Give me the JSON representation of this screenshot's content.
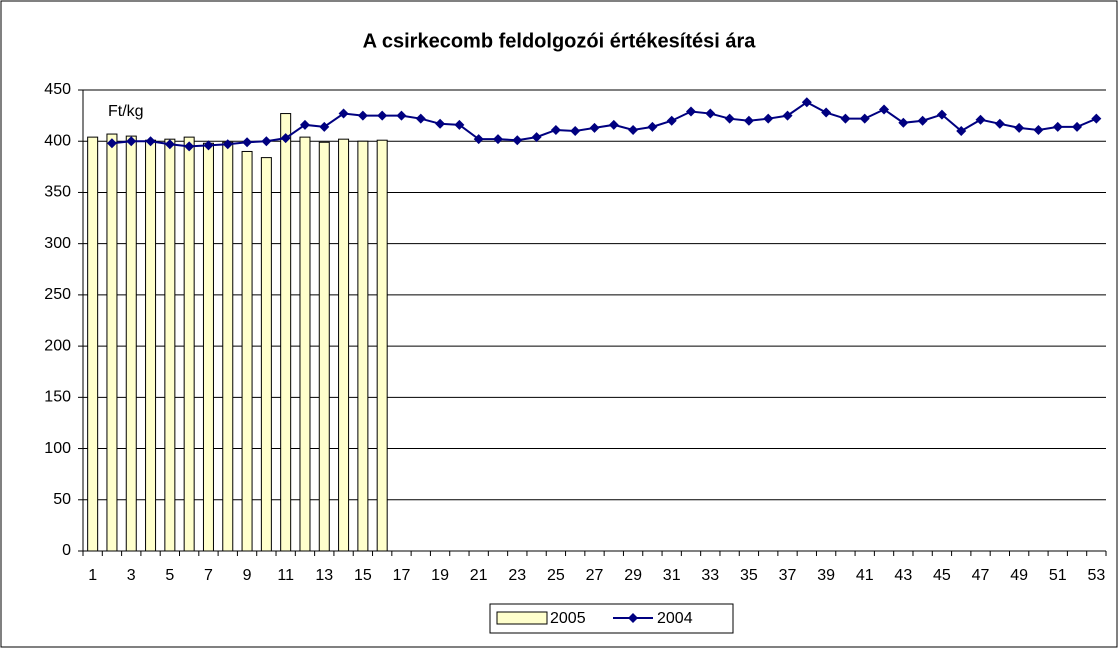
{
  "chart_data": {
    "type": "bar-line",
    "title": "A csirkecomb feldolgozói értékesítési ára",
    "annotation": "Ft/kg",
    "categories": [
      1,
      null,
      3,
      null,
      5,
      null,
      7,
      null,
      9,
      null,
      11,
      null,
      13,
      null,
      15,
      null,
      17,
      null,
      19,
      null,
      21,
      null,
      23,
      null,
      25,
      null,
      27,
      null,
      29,
      null,
      31,
      null,
      33,
      null,
      35,
      null,
      37,
      null,
      39,
      null,
      41,
      null,
      43,
      null,
      45,
      null,
      47,
      null,
      49,
      null,
      51,
      null,
      53
    ],
    "series": [
      {
        "name": "2005",
        "kind": "bar",
        "color": "#ffffcc",
        "values": [
          404,
          407,
          405,
          401,
          402,
          404,
          398,
          399,
          390,
          384,
          427,
          404,
          399,
          402,
          400,
          401,
          null,
          null,
          null,
          null,
          null,
          null,
          null,
          null,
          null,
          null,
          null,
          null,
          null,
          null,
          null,
          null,
          null,
          null,
          null,
          null,
          null,
          null,
          null,
          null,
          null,
          null,
          null,
          null,
          null,
          null,
          null,
          null,
          null,
          null,
          null,
          null,
          null
        ]
      },
      {
        "name": "2004",
        "kind": "line",
        "color": "#000080",
        "values": [
          null,
          398,
          400,
          400,
          397,
          395,
          396,
          397,
          399,
          400,
          403,
          416,
          414,
          427,
          425,
          425,
          425,
          422,
          417,
          416,
          402,
          402,
          401,
          404,
          411,
          410,
          413,
          416,
          411,
          414,
          420,
          429,
          427,
          422,
          420,
          422,
          425,
          438,
          428,
          422,
          422,
          431,
          418,
          420,
          426,
          410,
          421,
          417,
          413,
          411,
          414,
          414,
          422
        ]
      }
    ],
    "ylim": [
      0,
      450
    ],
    "yticks": [
      0,
      50,
      100,
      150,
      200,
      250,
      300,
      350,
      400,
      450
    ],
    "grid": true,
    "legend": "bottom"
  }
}
